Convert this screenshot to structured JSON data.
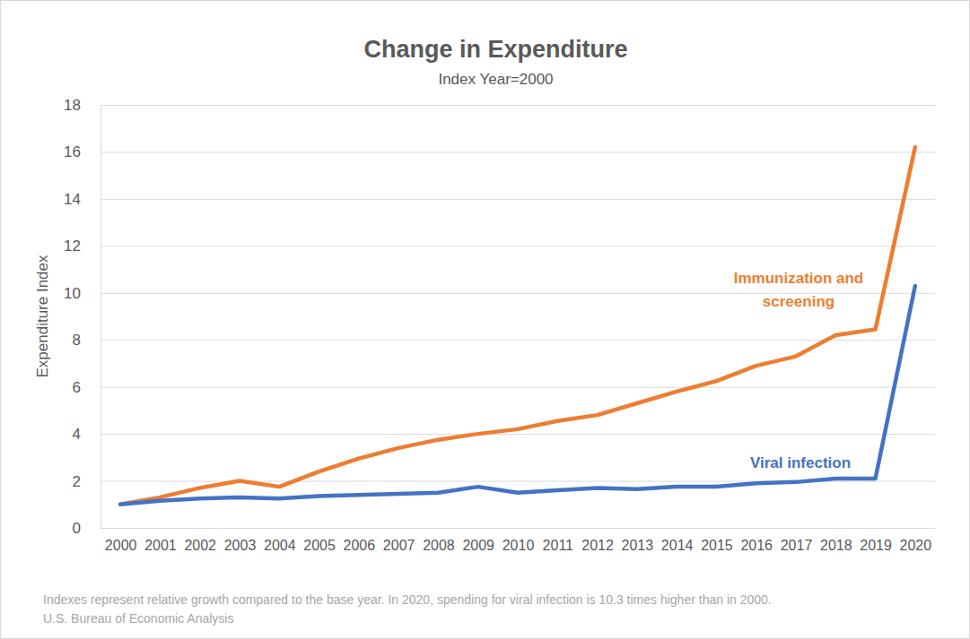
{
  "chart_data": {
    "type": "line",
    "title": "Change in Expenditure",
    "subtitle": "Index Year=2000",
    "y_label": "Expenditure Index",
    "categories": [
      "2000",
      "2001",
      "2002",
      "2003",
      "2004",
      "2005",
      "2006",
      "2007",
      "2008",
      "2009",
      "2010",
      "2011",
      "2012",
      "2013",
      "2014",
      "2015",
      "2016",
      "2017",
      "2018",
      "2019",
      "2020"
    ],
    "series": [
      {
        "name": "Immunization and screening",
        "color": "#ed7d31",
        "values": [
          1.0,
          1.3,
          1.7,
          2.0,
          1.75,
          2.4,
          2.95,
          3.4,
          3.75,
          4.0,
          4.2,
          4.55,
          4.8,
          5.3,
          5.8,
          6.25,
          6.9,
          7.3,
          8.2,
          8.45,
          16.2
        ]
      },
      {
        "name": "Viral infection",
        "color": "#4472c4",
        "values": [
          1.0,
          1.15,
          1.25,
          1.3,
          1.25,
          1.35,
          1.4,
          1.45,
          1.5,
          1.75,
          1.5,
          1.6,
          1.7,
          1.65,
          1.75,
          1.75,
          1.9,
          1.95,
          2.1,
          2.1,
          10.3
        ]
      }
    ],
    "ylim": [
      0,
      18
    ],
    "yticks": [
      0,
      2,
      4,
      6,
      8,
      10,
      12,
      14,
      16,
      18
    ],
    "grid": true,
    "annotations": [
      "Indexes represent relative growth compared to the base year. In 2020, spending for viral infection is 10.3 times higher than in 2000.",
      "U.S. Bureau of Economic Analysis"
    ]
  }
}
